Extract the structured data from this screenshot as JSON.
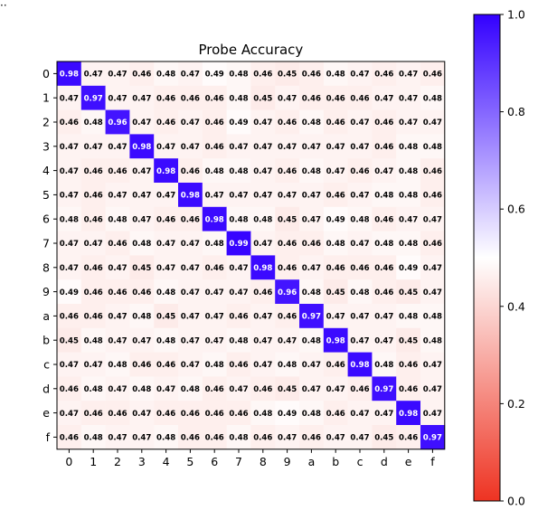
{
  "chart_data": {
    "type": "heatmap",
    "title": "Probe Accuracy",
    "corner_text": "··",
    "xlabel": "",
    "ylabel": "",
    "x_categories": [
      "0",
      "1",
      "2",
      "3",
      "4",
      "5",
      "6",
      "7",
      "8",
      "9",
      "a",
      "b",
      "c",
      "d",
      "e",
      "f"
    ],
    "y_categories": [
      "0",
      "1",
      "2",
      "3",
      "4",
      "5",
      "6",
      "7",
      "8",
      "9",
      "a",
      "b",
      "c",
      "d",
      "e",
      "f"
    ],
    "values": [
      [
        0.98,
        0.47,
        0.47,
        0.46,
        0.48,
        0.47,
        0.49,
        0.48,
        0.46,
        0.45,
        0.46,
        0.48,
        0.47,
        0.46,
        0.47,
        0.46
      ],
      [
        0.47,
        0.97,
        0.47,
        0.47,
        0.46,
        0.46,
        0.46,
        0.48,
        0.45,
        0.47,
        0.46,
        0.46,
        0.46,
        0.47,
        0.47,
        0.48
      ],
      [
        0.46,
        0.48,
        0.96,
        0.47,
        0.46,
        0.47,
        0.46,
        0.49,
        0.47,
        0.46,
        0.48,
        0.46,
        0.47,
        0.46,
        0.47,
        0.47
      ],
      [
        0.47,
        0.47,
        0.47,
        0.98,
        0.47,
        0.47,
        0.46,
        0.47,
        0.47,
        0.47,
        0.47,
        0.47,
        0.47,
        0.46,
        0.48,
        0.48
      ],
      [
        0.47,
        0.46,
        0.46,
        0.47,
        0.98,
        0.46,
        0.48,
        0.48,
        0.47,
        0.46,
        0.48,
        0.47,
        0.46,
        0.47,
        0.48,
        0.46
      ],
      [
        0.47,
        0.46,
        0.47,
        0.47,
        0.47,
        0.98,
        0.47,
        0.47,
        0.47,
        0.47,
        0.47,
        0.46,
        0.47,
        0.48,
        0.48,
        0.46
      ],
      [
        0.48,
        0.46,
        0.48,
        0.47,
        0.46,
        0.46,
        0.98,
        0.48,
        0.48,
        0.45,
        0.47,
        0.49,
        0.48,
        0.46,
        0.47,
        0.47
      ],
      [
        0.47,
        0.47,
        0.46,
        0.48,
        0.47,
        0.47,
        0.48,
        0.99,
        0.47,
        0.46,
        0.46,
        0.48,
        0.47,
        0.48,
        0.48,
        0.46
      ],
      [
        0.47,
        0.46,
        0.47,
        0.45,
        0.47,
        0.47,
        0.46,
        0.47,
        0.98,
        0.46,
        0.47,
        0.46,
        0.46,
        0.46,
        0.49,
        0.47
      ],
      [
        0.49,
        0.46,
        0.46,
        0.46,
        0.48,
        0.47,
        0.47,
        0.47,
        0.46,
        0.96,
        0.48,
        0.45,
        0.48,
        0.46,
        0.45,
        0.47
      ],
      [
        0.46,
        0.46,
        0.47,
        0.48,
        0.45,
        0.47,
        0.47,
        0.46,
        0.47,
        0.46,
        0.97,
        0.47,
        0.47,
        0.47,
        0.48,
        0.48
      ],
      [
        0.45,
        0.48,
        0.47,
        0.47,
        0.48,
        0.47,
        0.47,
        0.48,
        0.47,
        0.47,
        0.48,
        0.98,
        0.47,
        0.47,
        0.45,
        0.48
      ],
      [
        0.47,
        0.47,
        0.48,
        0.46,
        0.46,
        0.47,
        0.48,
        0.46,
        0.47,
        0.48,
        0.47,
        0.46,
        0.98,
        0.48,
        0.46,
        0.47
      ],
      [
        0.46,
        0.48,
        0.47,
        0.48,
        0.47,
        0.48,
        0.46,
        0.47,
        0.46,
        0.45,
        0.47,
        0.47,
        0.46,
        0.97,
        0.46,
        0.47
      ],
      [
        0.47,
        0.46,
        0.46,
        0.47,
        0.46,
        0.46,
        0.46,
        0.46,
        0.48,
        0.49,
        0.48,
        0.46,
        0.47,
        0.47,
        0.98,
        0.47
      ],
      [
        0.46,
        0.48,
        0.47,
        0.47,
        0.48,
        0.46,
        0.46,
        0.48,
        0.46,
        0.47,
        0.46,
        0.47,
        0.47,
        0.45,
        0.46,
        0.97
      ]
    ],
    "value_range": [
      0.0,
      1.0
    ],
    "colormap": {
      "low": "#ee3322",
      "mid": "#ffffff",
      "high": "#3300ff"
    },
    "colorbar": {
      "ticks": [
        "0.0",
        "0.2",
        "0.4",
        "0.6",
        "0.8",
        "1.0"
      ],
      "tick_values": [
        0.0,
        0.2,
        0.4,
        0.6,
        0.8,
        1.0
      ]
    },
    "grid": false,
    "legend": "colorbar-right"
  }
}
